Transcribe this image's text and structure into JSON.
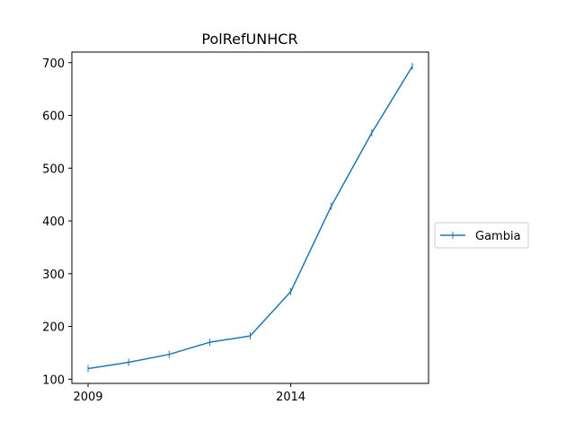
{
  "chart_data": {
    "type": "line",
    "title": "PolRefUNHCR",
    "xlabel": "",
    "ylabel": "",
    "x": [
      2009,
      2010,
      2011,
      2012,
      2013,
      2014,
      2015,
      2016,
      2017
    ],
    "x_ticks": [
      2009,
      2014
    ],
    "x_tick_labels": [
      "2009",
      "2014"
    ],
    "y_ticks": [
      100,
      200,
      300,
      400,
      500,
      600,
      700
    ],
    "y_tick_labels": [
      "100",
      "200",
      "300",
      "400",
      "500",
      "600",
      "700"
    ],
    "xlim": [
      2008.6,
      2017.4
    ],
    "ylim": [
      92,
      720
    ],
    "grid": false,
    "legend_position": "outside-right",
    "series": [
      {
        "name": "Gambia",
        "color": "#1f77b4",
        "marker": "vertical-line",
        "values": [
          120,
          132,
          147,
          170,
          182,
          266,
          428,
          567,
          693
        ]
      }
    ]
  }
}
